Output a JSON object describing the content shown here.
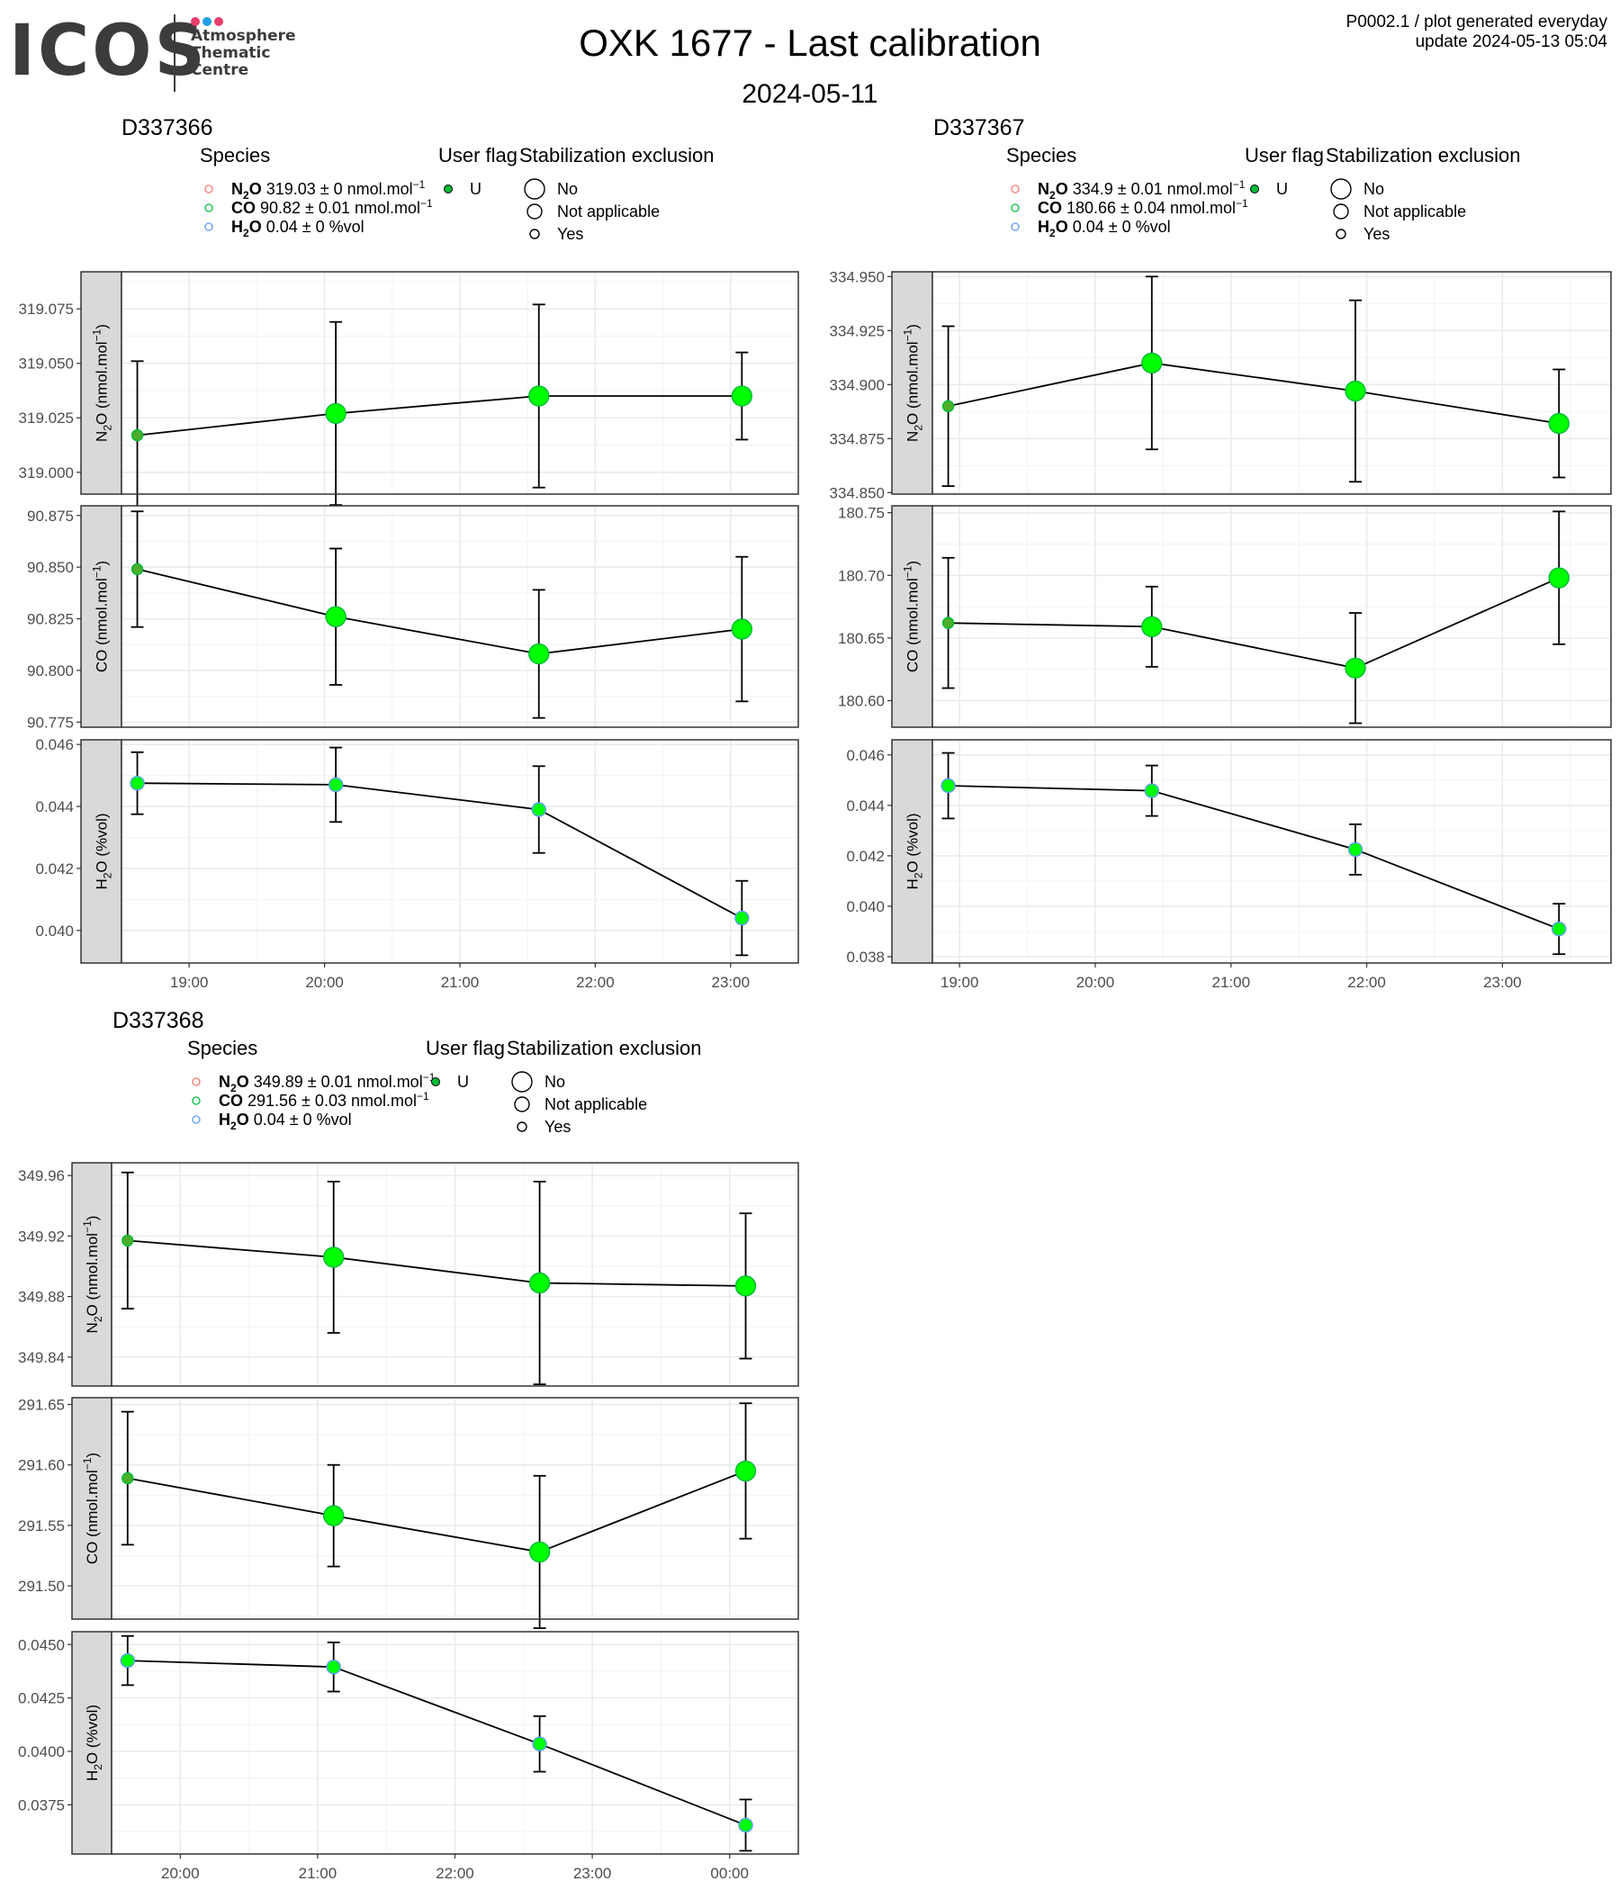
{
  "header": {
    "logo_word": "ICOS",
    "logo_sub": [
      "Atmosphere",
      "Thematic",
      "Centre"
    ],
    "logo_dot_colors": [
      "#e83e6c",
      "#1fa0e3",
      "#e83e6c"
    ],
    "title": "OXK 1677 - Last calibration",
    "date": "2024-05-11",
    "corner_line1": "P0002.1 / plot generated everyday",
    "corner_line2": "update  2024-05-13 05:04"
  },
  "legend_labels": {
    "species_title": "Species",
    "flag_title": "User flag",
    "stab_title": "Stabilization exclusion",
    "flag_value": "U",
    "stab_items": [
      "No",
      "Not applicable",
      "Yes"
    ]
  },
  "colors": {
    "n2o": "#f8766d",
    "co": "#00ba38",
    "h2o": "#619cff",
    "point_fill": "#00ff00",
    "strip_fill": "#d9d9d9",
    "grid": "#ebebeb"
  },
  "chart_data": [
    {
      "type": "scatter",
      "title": "D337366",
      "legend_species": [
        {
          "species": "N2O",
          "value": "319.03",
          "pm": "0",
          "unit": "nmol.mol",
          "exp": "−1"
        },
        {
          "species": "CO",
          "value": "90.82",
          "pm": "0.01",
          "unit": "nmol.mol",
          "exp": "−1"
        },
        {
          "species": "H2O",
          "value": "0.04",
          "pm": "0",
          "unit": "%vol",
          "exp": ""
        }
      ],
      "x_range": [
        "18:30",
        "23:30"
      ],
      "x_ticks": [
        "19:00",
        "20:00",
        "21:00",
        "22:00",
        "23:00"
      ],
      "x": [
        "18:37",
        "20:05",
        "21:35",
        "23:05"
      ],
      "facets": [
        {
          "ylabel_main": "N",
          "ylabel_sub": "2",
          "ylabel_rest": "O (nmol.mol",
          "ylabel_sup": "−1",
          "ylabel_end": ")",
          "ylim": [
            318.99,
            319.092
          ],
          "y_ticks": [
            "319.000",
            "319.025",
            "319.050",
            "319.075"
          ],
          "values": [
            319.017,
            319.027,
            319.035,
            319.035
          ],
          "err": [
            0.034,
            0.042,
            0.042,
            0.02
          ],
          "size": [
            "Yes",
            "No",
            "No",
            "No"
          ]
        },
        {
          "ylabel_main": "CO (nmol.mol",
          "ylabel_sub": "",
          "ylabel_rest": "",
          "ylabel_sup": "−1",
          "ylabel_end": ")",
          "ylim": [
            90.7725,
            90.8797
          ],
          "y_ticks": [
            "90.775",
            "90.800",
            "90.825",
            "90.850",
            "90.875"
          ],
          "values": [
            90.849,
            90.826,
            90.808,
            90.82
          ],
          "err": [
            0.028,
            0.033,
            0.031,
            0.035
          ],
          "size": [
            "Yes",
            "No",
            "No",
            "No"
          ]
        },
        {
          "ylabel_main": "H",
          "ylabel_sub": "2",
          "ylabel_rest": "O (%vol)",
          "ylabel_sup": "",
          "ylabel_end": "",
          "ylim": [
            0.03895,
            0.04615
          ],
          "y_ticks": [
            "0.040",
            "0.042",
            "0.044",
            "0.046"
          ],
          "values": [
            0.04475,
            0.0447,
            0.0439,
            0.0404
          ],
          "err": [
            0.001,
            0.0012,
            0.0014,
            0.0012
          ],
          "size": [
            "Yes",
            "Yes",
            "Yes",
            "Yes"
          ]
        }
      ]
    },
    {
      "type": "scatter",
      "title": "D337367",
      "legend_species": [
        {
          "species": "N2O",
          "value": "334.9",
          "pm": "0.01",
          "unit": "nmol.mol",
          "exp": "−1"
        },
        {
          "species": "CO",
          "value": "180.66",
          "pm": "0.04",
          "unit": "nmol.mol",
          "exp": "−1"
        },
        {
          "species": "H2O",
          "value": "0.04",
          "pm": "0",
          "unit": "%vol",
          "exp": ""
        }
      ],
      "x_range": [
        "18:48",
        "23:48"
      ],
      "x_ticks": [
        "19:00",
        "20:00",
        "21:00",
        "22:00",
        "23:00"
      ],
      "x": [
        "18:55",
        "20:25",
        "21:55",
        "23:25"
      ],
      "facets": [
        {
          "ylabel_main": "N",
          "ylabel_sub": "2",
          "ylabel_rest": "O (nmol.mol",
          "ylabel_sup": "−1",
          "ylabel_end": ")",
          "ylim": [
            334.8493,
            334.9522
          ],
          "y_ticks": [
            "334.850",
            "334.875",
            "334.900",
            "334.925",
            "334.950"
          ],
          "values": [
            334.89,
            334.91,
            334.897,
            334.882
          ],
          "err": [
            0.037,
            0.04,
            0.042,
            0.025
          ],
          "size": [
            "Yes",
            "No",
            "No",
            "No"
          ]
        },
        {
          "ylabel_main": "CO (nmol.mol",
          "ylabel_sub": "",
          "ylabel_rest": "",
          "ylabel_sup": "−1",
          "ylabel_end": ")",
          "ylim": [
            180.5788,
            180.7555
          ],
          "y_ticks": [
            "180.60",
            "180.65",
            "180.70",
            "180.75"
          ],
          "values": [
            180.662,
            180.659,
            180.626,
            180.698
          ],
          "err": [
            0.052,
            0.032,
            0.044,
            0.053
          ],
          "size": [
            "Yes",
            "No",
            "No",
            "No"
          ]
        },
        {
          "ylabel_main": "H",
          "ylabel_sub": "2",
          "ylabel_rest": "O (%vol)",
          "ylabel_sup": "",
          "ylabel_end": "",
          "ylim": [
            0.03775,
            0.0466
          ],
          "y_ticks": [
            "0.038",
            "0.040",
            "0.042",
            "0.044",
            "0.046"
          ],
          "values": [
            0.04478,
            0.04458,
            0.04225,
            0.0391
          ],
          "err": [
            0.0013,
            0.001,
            0.001,
            0.001
          ],
          "size": [
            "Yes",
            "Yes",
            "Yes",
            "Yes"
          ]
        }
      ]
    },
    {
      "type": "scatter",
      "title": "D337368",
      "legend_species": [
        {
          "species": "N2O",
          "value": "349.89",
          "pm": "0.01",
          "unit": "nmol.mol",
          "exp": "−1"
        },
        {
          "species": "CO",
          "value": "291.56",
          "pm": "0.03",
          "unit": "nmol.mol",
          "exp": "−1"
        },
        {
          "species": "H2O",
          "value": "0.04",
          "pm": "0",
          "unit": "%vol",
          "exp": ""
        }
      ],
      "x_range": [
        "19:30",
        "00:30"
      ],
      "x_ticks": [
        "20:00",
        "21:00",
        "22:00",
        "23:00",
        "00:00"
      ],
      "x": [
        "19:37",
        "21:07",
        "22:37",
        "00:07"
      ],
      "facets": [
        {
          "ylabel_main": "N",
          "ylabel_sub": "2",
          "ylabel_rest": "O (nmol.mol",
          "ylabel_sup": "−1",
          "ylabel_end": ")",
          "ylim": [
            349.8209,
            349.9684
          ],
          "y_ticks": [
            "349.84",
            "349.88",
            "349.92",
            "349.96"
          ],
          "values": [
            349.917,
            349.906,
            349.889,
            349.887
          ],
          "err": [
            0.045,
            0.05,
            0.067,
            0.048
          ],
          "size": [
            "Yes",
            "No",
            "No",
            "No"
          ]
        },
        {
          "ylabel_main": "CO (nmol.mol",
          "ylabel_sub": "",
          "ylabel_rest": "",
          "ylabel_sup": "−1",
          "ylabel_end": ")",
          "ylim": [
            291.4725,
            291.6556
          ],
          "y_ticks": [
            "291.50",
            "291.55",
            "291.60",
            "291.65"
          ],
          "values": [
            291.589,
            291.558,
            291.528,
            291.595
          ],
          "err": [
            0.055,
            0.042,
            0.063,
            0.056
          ],
          "size": [
            "Yes",
            "No",
            "No",
            "No"
          ]
        },
        {
          "ylabel_main": "H",
          "ylabel_sub": "2",
          "ylabel_rest": "O (%vol)",
          "ylabel_sup": "",
          "ylabel_end": "",
          "ylim": [
            0.0352,
            0.0456
          ],
          "y_ticks": [
            "0.0375",
            "0.0400",
            "0.0425",
            "0.0450"
          ],
          "values": [
            0.04425,
            0.04395,
            0.04035,
            0.03655
          ],
          "err": [
            0.00115,
            0.00115,
            0.0013,
            0.0012
          ],
          "size": [
            "Yes",
            "Yes",
            "Yes",
            "Yes"
          ]
        }
      ]
    }
  ]
}
